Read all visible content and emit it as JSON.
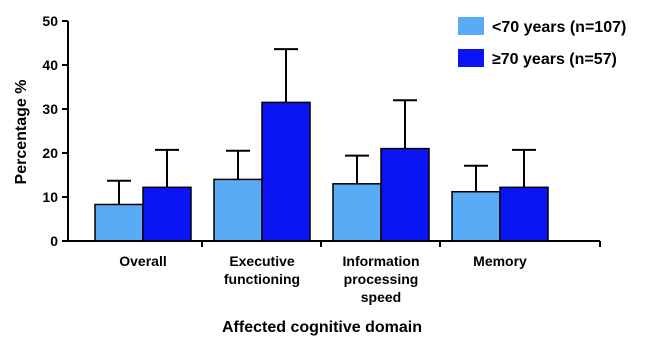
{
  "chart_data": {
    "type": "bar",
    "title": "",
    "xlabel": "Affected cognitive domain",
    "ylabel": "Percentage %",
    "ylim": [
      0,
      50
    ],
    "yticks": [
      0,
      10,
      20,
      30,
      40,
      50
    ],
    "grid": false,
    "legend_position": "top-right",
    "categories": [
      [
        "Overall"
      ],
      [
        "Executive",
        "functioning"
      ],
      [
        "Information",
        "processing",
        "speed"
      ],
      [
        "Memory"
      ]
    ],
    "series": [
      {
        "name": "<70 years  (n=107)",
        "color": "#5aabf6",
        "values": [
          8.3,
          14.0,
          13.0,
          11.2
        ],
        "error_upper": [
          13.7,
          20.5,
          19.4,
          17.1
        ]
      },
      {
        "name": "≥70 years  (n=57)",
        "color": "#0a14f5",
        "values": [
          12.2,
          31.5,
          21.0,
          12.2
        ],
        "error_upper": [
          20.7,
          43.6,
          32.0,
          20.7
        ]
      }
    ]
  }
}
